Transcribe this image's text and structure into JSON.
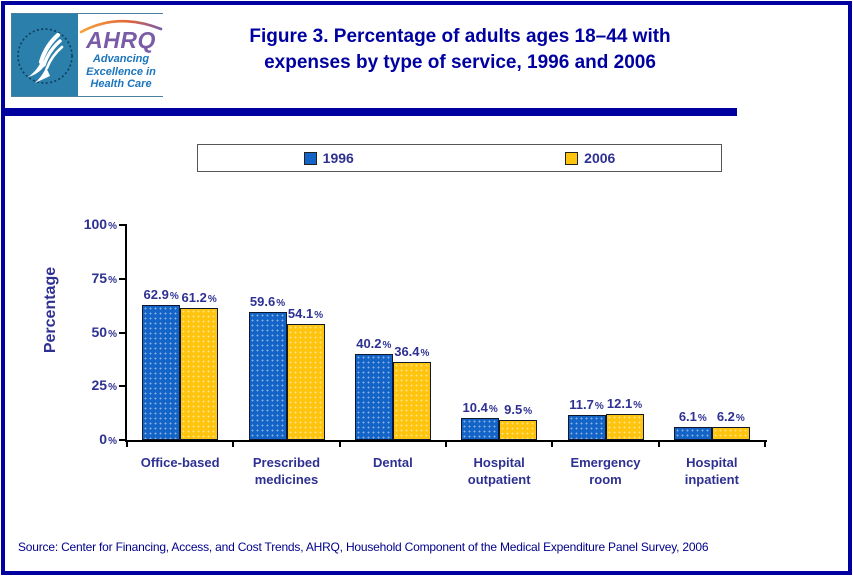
{
  "header": {
    "logo": {
      "acronym": "AHRQ",
      "tagline_lines": [
        "Advancing",
        "Excellence in",
        "Health Care"
      ],
      "seal_text": "DEPARTMENT OF HEALTH & HUMAN SERVICES • USA"
    },
    "title_line1": "Figure 3. Percentage of adults ages 18–44 with",
    "title_line2": "expenses by type of service, 1996 and 2006"
  },
  "chart_data": {
    "type": "bar",
    "title": "Figure 3. Percentage of adults ages 18–44 with expenses by type of service, 1996 and 2006",
    "categories": [
      "Office-based",
      "Prescribed medicines",
      "Dental",
      "Hospital outpatient",
      "Emergency room",
      "Hospital inpatient"
    ],
    "series": [
      {
        "name": "1996",
        "color": "#1463C7",
        "values": [
          62.9,
          59.6,
          40.2,
          10.4,
          11.7,
          6.1
        ]
      },
      {
        "name": "2006",
        "color": "#FFC40D",
        "values": [
          61.2,
          54.1,
          36.4,
          9.5,
          12.1,
          6.2
        ]
      }
    ],
    "xlabel": "",
    "ylabel": "Percentage",
    "ylim": [
      0,
      100
    ],
    "yticks": [
      0,
      25,
      50,
      75,
      100
    ],
    "value_suffix": "%",
    "grid": false,
    "legend_position": "top"
  },
  "colors": {
    "page_border": "#0000A0",
    "title_text": "#0000A0",
    "chart_text": "#2E3192",
    "seal_background": "#2B7FAB",
    "ahrq_purple": "#7A5CA6",
    "tagline_blue": "#1B75BC"
  },
  "footer": {
    "source": "Source: Center for Financing, Access, and Cost Trends, AHRQ, Household Component of the Medical Expenditure Panel Survey, 2006"
  }
}
